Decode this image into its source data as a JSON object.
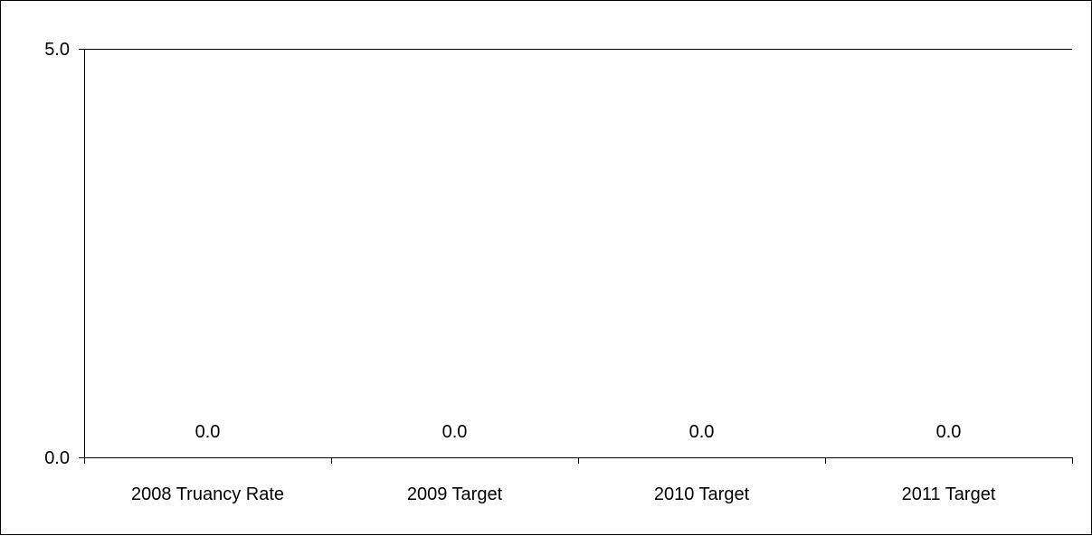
{
  "chart_data": {
    "type": "bar",
    "title": "",
    "xlabel": "",
    "ylabel": "",
    "categories": [
      "2008 Truancy Rate",
      "2009 Target",
      "2010 Target",
      "2011 Target"
    ],
    "values": [
      0.0,
      0.0,
      0.0,
      0.0
    ],
    "data_labels": [
      "0.0",
      "0.0",
      "0.0",
      "0.0"
    ],
    "y_ticks": [
      0.0,
      5.0
    ],
    "y_tick_labels": [
      "0.0",
      "5.0"
    ],
    "ylim": [
      0,
      5
    ],
    "grid": "top gridline only",
    "legend": "none",
    "colors": {
      "axis": "#000000",
      "text": "#000000",
      "background": "#ffffff"
    }
  }
}
